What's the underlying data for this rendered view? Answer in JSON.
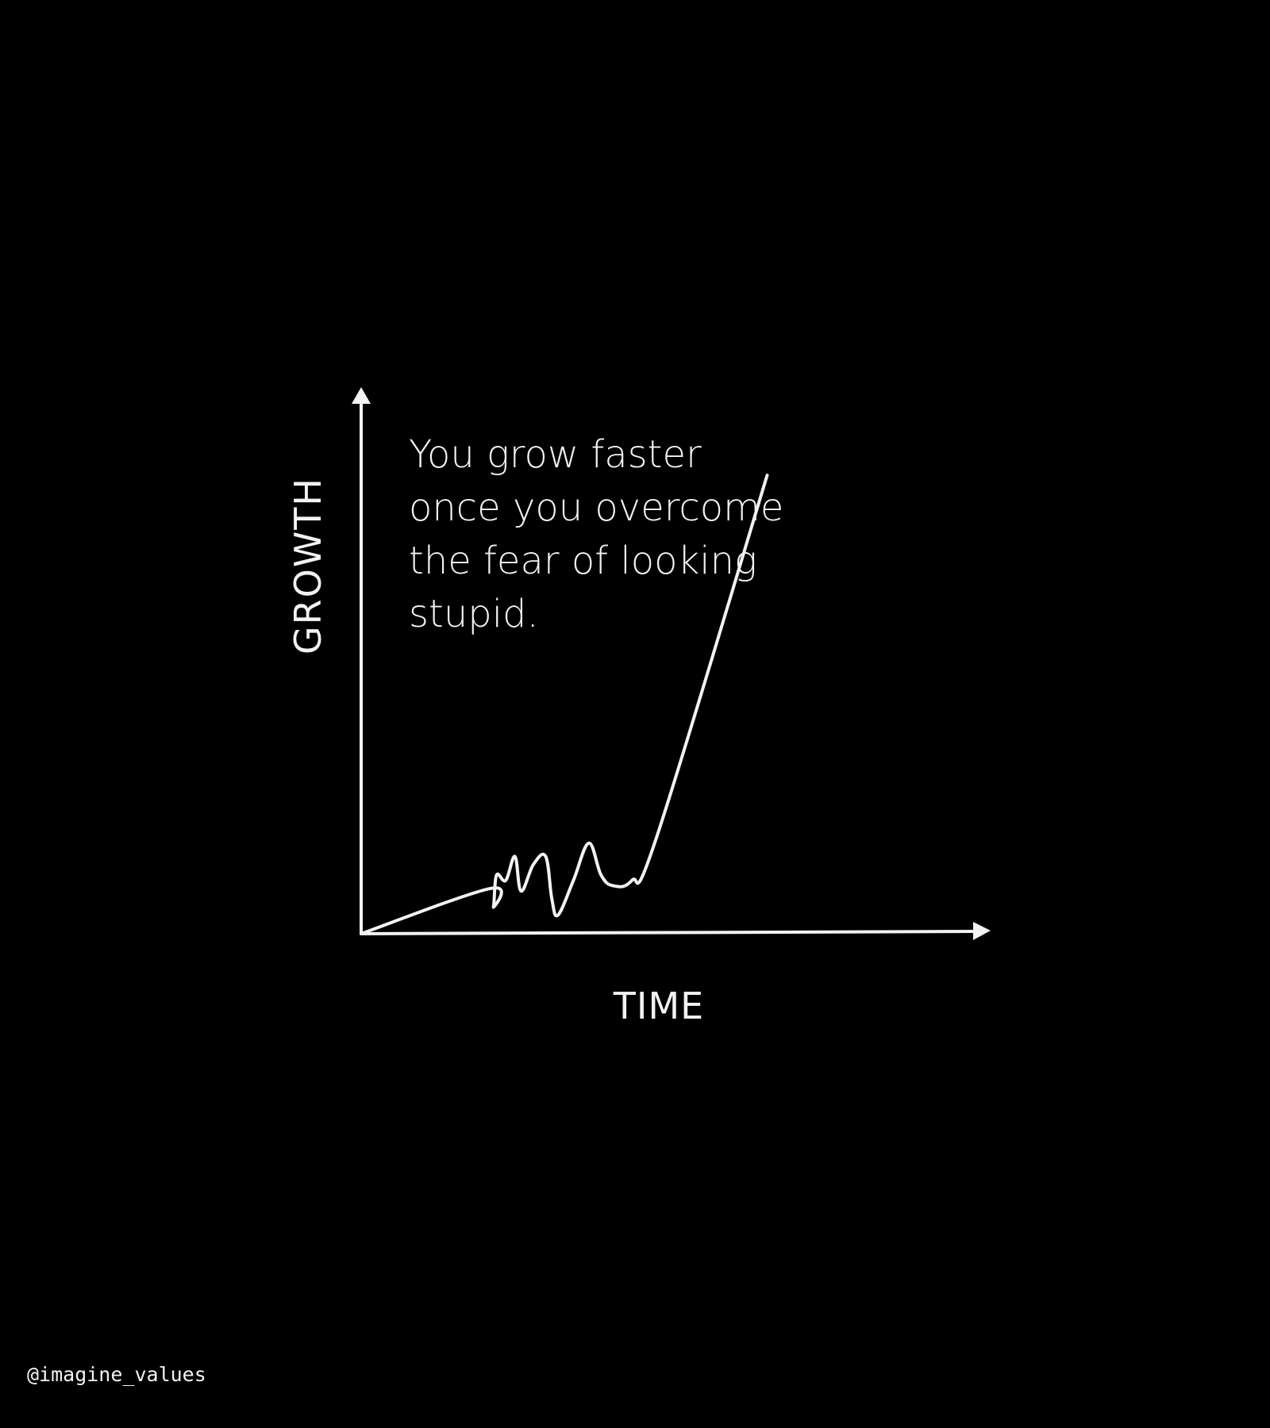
{
  "quote": {
    "lines": [
      "You grow faster",
      "once you overcome",
      "the fear of looking",
      "stupid."
    ]
  },
  "watermark": "@imagine_values",
  "colors": {
    "background": "#000000",
    "foreground": "#f2f2f2"
  },
  "chart_data": {
    "type": "line",
    "title": "",
    "xlabel": "TIME",
    "ylabel": "GROWTH",
    "x_ticks_shown": false,
    "y_ticks_shown": false,
    "grid": false,
    "legend": "none",
    "xlim": [
      0,
      100
    ],
    "ylim": [
      0,
      100
    ],
    "series": [
      {
        "points": [
          [
            0,
            0
          ],
          [
            21,
            8.5
          ],
          [
            21.5,
            5
          ],
          [
            22,
            11
          ],
          [
            23.5,
            10
          ],
          [
            25,
            14.5
          ],
          [
            26,
            8
          ],
          [
            28,
            13
          ],
          [
            30,
            14.5
          ],
          [
            31,
            6.5
          ],
          [
            32,
            3.5
          ],
          [
            34.5,
            10
          ],
          [
            37,
            17
          ],
          [
            39,
            11
          ],
          [
            41,
            9
          ],
          [
            44,
            10
          ],
          [
            48,
            18
          ],
          [
            66,
            86
          ]
        ]
      }
    ]
  }
}
